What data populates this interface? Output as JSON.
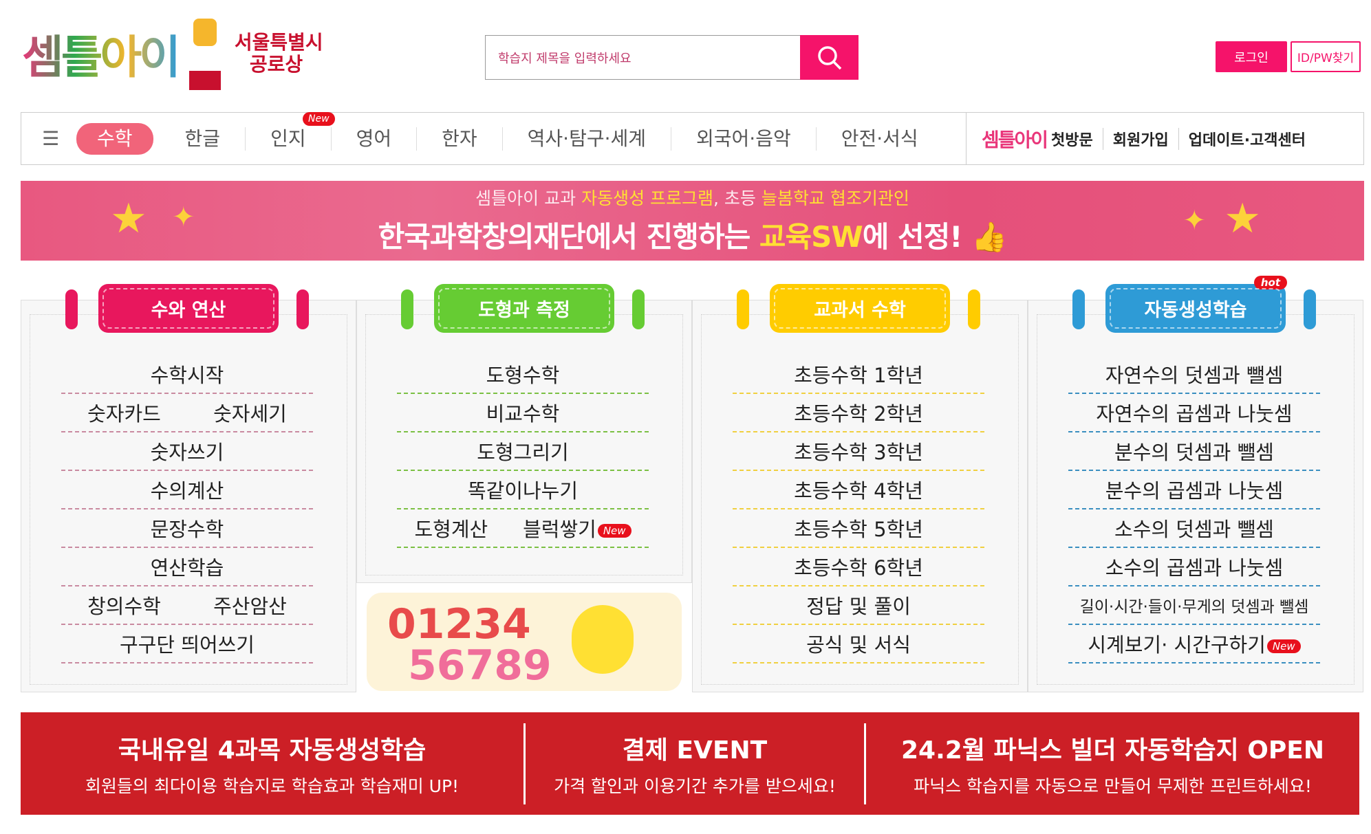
{
  "header": {
    "logo_text": "셈틀아이",
    "award": [
      "서울특별시",
      "공로상"
    ],
    "search_placeholder": "학습지 제목을 입력하세요",
    "login": "로그인",
    "find_id": "ID/PW찾기"
  },
  "nav": {
    "items": [
      {
        "label": "수학",
        "active": true
      },
      {
        "label": "한글"
      },
      {
        "label": "인지",
        "badge": "New"
      },
      {
        "label": "영어"
      },
      {
        "label": "한자"
      },
      {
        "label": "역사·탐구·세계"
      },
      {
        "label": "외국어·음악"
      },
      {
        "label": "안전·서식"
      }
    ],
    "right": {
      "logo": "셈틀아이",
      "first_visit": "첫방문",
      "signup": "회원가입",
      "update": "업데이트·고객센터"
    }
  },
  "banner": {
    "line1_a": "셈틀아이 교과 ",
    "line1_b": "자동생성 프로그램",
    "line1_c": ", 초등 ",
    "line1_d": "늘봄학교 협조기관인",
    "line2_a": "한국과학창의재단에서 진행하는 ",
    "line2_b": "교육SW",
    "line2_c": "에 선정!"
  },
  "columns": [
    {
      "title": "수와 연산",
      "color": "#e8175d",
      "line": "#c98aa0",
      "rows": [
        [
          "수학시작"
        ],
        [
          "숫자카드",
          "숫자세기"
        ],
        [
          "숫자쓰기"
        ],
        [
          "수의계산"
        ],
        [
          "문장수학"
        ],
        [
          "연산학습"
        ],
        [
          "창의수학",
          "주산암산"
        ],
        [
          "구구단 띄어쓰기"
        ]
      ]
    },
    {
      "title": "도형과 측정",
      "color": "#66cc33",
      "line": "#7bc043",
      "rows": [
        [
          "도형수학"
        ],
        [
          "비교수학"
        ],
        [
          "도형그리기"
        ],
        [
          "똑같이나누기"
        ],
        [
          "도형계산",
          "블럭쌓기"
        ]
      ],
      "new_badge": "New"
    },
    {
      "title": "교과서 수학",
      "color": "#ffcc00",
      "line": "#f0d040",
      "rows": [
        [
          "초등수학 1학년"
        ],
        [
          "초등수학 2학년"
        ],
        [
          "초등수학 3학년"
        ],
        [
          "초등수학 4학년"
        ],
        [
          "초등수학 5학년"
        ],
        [
          "초등수학 6학년"
        ],
        [
          "정답 및 풀이"
        ],
        [
          "공식 및 서식"
        ]
      ]
    },
    {
      "title": "자동생성학습",
      "color": "#2e9bd6",
      "line": "#3a8fc0",
      "badge": "hot",
      "rows": [
        [
          "자연수의 덧셈과 뺄셈"
        ],
        [
          "자연수의 곱셈과 나눗셈"
        ],
        [
          "분수의 덧셈과 뺄셈"
        ],
        [
          "분수의 곱셈과 나눗셈"
        ],
        [
          "소수의 덧셈과 뺄셈"
        ],
        [
          "소수의 곱셈과 나눗셈"
        ],
        [
          "길이·시간·들이·무게의 덧셈과 뺄셈"
        ],
        [
          "시계보기· 시간구하기"
        ]
      ],
      "new_badge": "New"
    }
  ],
  "numbers_image": {
    "row1": "01234",
    "row2": "56789"
  },
  "bottom": [
    {
      "title": "국내유일 4과목 자동생성학습",
      "sub": "회원들의 최다이용 학습지로 학습효과 학습재미 UP!"
    },
    {
      "title": "결제 EVENT",
      "sub": "가격 할인과 이용기간 추가를 받으세요!"
    },
    {
      "title": "24.2월 파닉스 빌더 자동학습지 OPEN",
      "sub": "파닉스 학습지를 자동으로 만들어 무제한 프린트하세요!"
    }
  ]
}
